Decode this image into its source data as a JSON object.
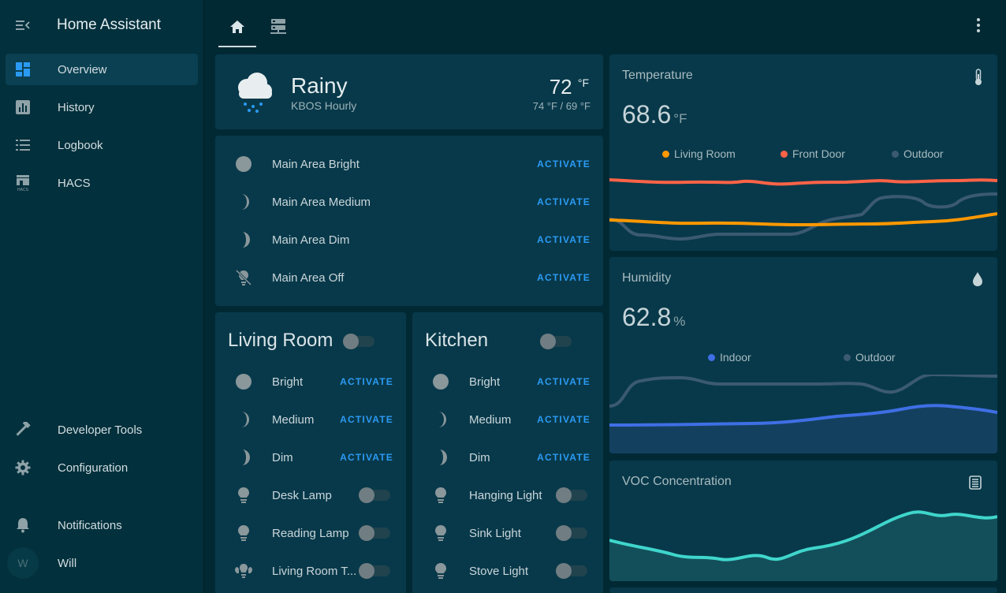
{
  "app": {
    "title": "Home Assistant"
  },
  "sidebar": {
    "items": [
      {
        "label": "Overview",
        "icon": "dashboard-icon"
      },
      {
        "label": "History",
        "icon": "chart-bar-icon"
      },
      {
        "label": "Logbook",
        "icon": "format-list-icon"
      },
      {
        "label": "HACS",
        "icon": "hacs-icon"
      },
      {
        "label": "Developer Tools",
        "icon": "hammer-icon"
      },
      {
        "label": "Configuration",
        "icon": "cog-icon"
      },
      {
        "label": "Notifications",
        "icon": "bell-icon"
      },
      {
        "label": "Will",
        "icon": "avatar"
      }
    ],
    "avatar_initial": "W"
  },
  "weather": {
    "condition": "Rainy",
    "source": "KBOS Hourly",
    "temp": "72",
    "temp_unit": "°F",
    "high_low": "74 °F / 69 °F"
  },
  "main_scenes": [
    {
      "name": "Main Area Bright",
      "action": "ACTIVATE",
      "icon": "circle-icon"
    },
    {
      "name": "Main Area Medium",
      "action": "ACTIVATE",
      "icon": "moon-icon"
    },
    {
      "name": "Main Area Dim",
      "action": "ACTIVATE",
      "icon": "crescent-icon"
    },
    {
      "name": "Main Area Off",
      "action": "ACTIVATE",
      "icon": "lightbulb-off-icon"
    }
  ],
  "living_room": {
    "title": "Living Room",
    "rows": [
      {
        "name": "Bright",
        "type": "scene",
        "action": "ACTIVATE"
      },
      {
        "name": "Medium",
        "type": "scene",
        "action": "ACTIVATE"
      },
      {
        "name": "Dim",
        "type": "scene",
        "action": "ACTIVATE"
      },
      {
        "name": "Desk Lamp",
        "type": "light"
      },
      {
        "name": "Reading Lamp",
        "type": "light"
      },
      {
        "name": "Living Room T...",
        "type": "light-group"
      }
    ]
  },
  "kitchen": {
    "title": "Kitchen",
    "rows": [
      {
        "name": "Bright",
        "type": "scene",
        "action": "ACTIVATE"
      },
      {
        "name": "Medium",
        "type": "scene",
        "action": "ACTIVATE"
      },
      {
        "name": "Dim",
        "type": "scene",
        "action": "ACTIVATE"
      },
      {
        "name": "Hanging Light",
        "type": "light"
      },
      {
        "name": "Sink Light",
        "type": "light"
      },
      {
        "name": "Stove Light",
        "type": "light"
      }
    ]
  },
  "temperature": {
    "title": "Temperature",
    "value": "68.6",
    "unit": "°F",
    "legend": [
      {
        "name": "Living Room",
        "color": "#ff9800"
      },
      {
        "name": "Front Door",
        "color": "#ff6347"
      },
      {
        "name": "Outdoor",
        "color": "#3b5a72"
      }
    ]
  },
  "humidity": {
    "title": "Humidity",
    "value": "62.8",
    "unit": "%",
    "legend": [
      {
        "name": "Indoor",
        "color": "#3f6fe5"
      },
      {
        "name": "Outdoor",
        "color": "#3b5a72"
      }
    ]
  },
  "voc": {
    "title": "VOC Concentration",
    "color": "#3fd6cc"
  }
}
